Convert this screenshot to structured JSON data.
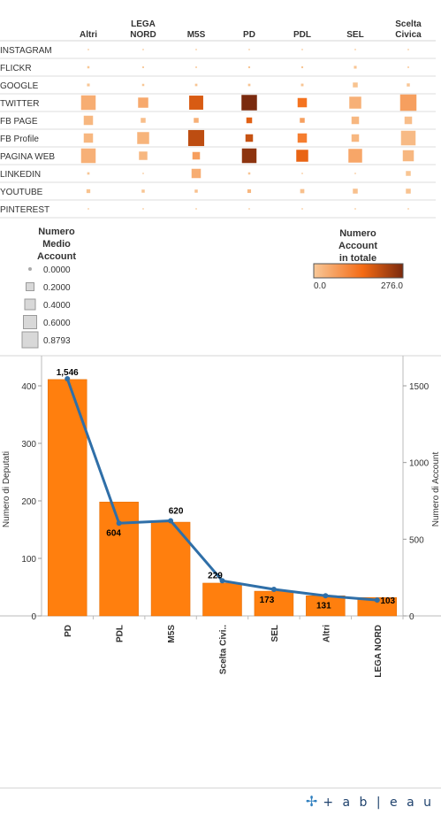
{
  "chart_data": [
    {
      "type": "heatmap",
      "columns": [
        "Altri",
        "LEGA NORD",
        "M5S",
        "PD",
        "PDL",
        "SEL",
        "Scelta Civica"
      ],
      "rows": [
        "INSTAGRAM",
        "FLICKR",
        "GOOGLE",
        "TWITTER",
        "FB PAGE",
        "FB Profile",
        "PAGINA WEB",
        "LINKEDIN",
        "YOUTUBE",
        "PINTEREST"
      ],
      "size_measure": "Numero Medio Account",
      "color_measure": "Numero Account in totale",
      "size_values": [
        [
          0.0,
          0.0,
          0.0,
          0.0,
          0.0,
          0.0,
          0.0
        ],
        [
          0.05,
          0.02,
          0.01,
          0.03,
          0.03,
          0.08,
          0.01
        ],
        [
          0.08,
          0.05,
          0.06,
          0.06,
          0.07,
          0.2,
          0.1
        ],
        [
          0.75,
          0.5,
          0.72,
          0.8,
          0.45,
          0.6,
          0.85
        ],
        [
          0.45,
          0.2,
          0.2,
          0.25,
          0.2,
          0.35,
          0.35
        ],
        [
          0.45,
          0.6,
          0.83,
          0.35,
          0.45,
          0.35,
          0.75
        ],
        [
          0.75,
          0.4,
          0.35,
          0.75,
          0.6,
          0.7,
          0.55
        ],
        [
          0.06,
          0.0,
          0.45,
          0.05,
          0.0,
          0.0,
          0.2
        ],
        [
          0.14,
          0.1,
          0.1,
          0.13,
          0.16,
          0.2,
          0.2
        ],
        [
          0.0,
          0.0,
          0.0,
          0.0,
          0.0,
          0.0,
          0.0
        ]
      ],
      "color_values": [
        [
          0,
          0,
          0,
          0,
          0,
          0,
          0
        ],
        [
          2,
          1,
          1,
          3,
          2,
          4,
          1
        ],
        [
          3,
          2,
          5,
          6,
          5,
          8,
          3
        ],
        [
          40,
          45,
          170,
          276,
          125,
          35,
          60
        ],
        [
          25,
          15,
          35,
          160,
          60,
          25,
          15
        ],
        [
          25,
          30,
          200,
          190,
          110,
          25,
          20
        ],
        [
          35,
          25,
          60,
          255,
          150,
          50,
          25
        ],
        [
          2,
          0,
          40,
          4,
          0,
          0,
          5
        ],
        [
          8,
          5,
          10,
          25,
          12,
          10,
          7
        ],
        [
          0,
          0,
          0,
          0,
          0,
          0,
          0
        ]
      ],
      "size_legend": {
        "title_lines": [
          "Numero",
          "Medio",
          "Account"
        ],
        "values": [
          "0.0000",
          "0.2000",
          "0.4000",
          "0.6000",
          "0.8793"
        ]
      },
      "color_legend": {
        "title_lines": [
          "Numero",
          "Account",
          "in totale"
        ],
        "min_label": "0.0",
        "max_label": "276.0",
        "min_color": "#f8c898",
        "mid_color": "#f46a14",
        "max_color": "#7a2a0e"
      }
    },
    {
      "type": "bar",
      "categories": [
        "PD",
        "PDL",
        "M5S",
        "Scelta Civi..",
        "SEL",
        "Altri",
        "LEGA NORD"
      ],
      "series": [
        {
          "values": [
            411,
            198,
            163,
            57,
            43,
            35,
            32
          ],
          "color": "#ff7f0e",
          "axis": "left"
        },
        {
          "values": [
            1546,
            604,
            620,
            229,
            173,
            131,
            103
          ],
          "color": "#2f6fa8",
          "axis": "right",
          "kind": "line",
          "labels": [
            "1,546",
            "604",
            "620",
            "229",
            "173",
            "131",
            "103"
          ]
        }
      ],
      "ylabel": "Numero di Deputati",
      "y2label": "Numero di Account",
      "ylim": [
        0,
        440
      ],
      "y2lim": [
        0,
        1650
      ],
      "yticks": [
        "0",
        "100",
        "200",
        "300",
        "400"
      ],
      "y2ticks": [
        "0",
        "500",
        "1000",
        "1500"
      ],
      "y2tick_values": [
        0,
        500,
        1000,
        1500
      ]
    }
  ],
  "footer": {
    "logo_text": "+ a b | e a u",
    "logo_icon": "✢"
  }
}
